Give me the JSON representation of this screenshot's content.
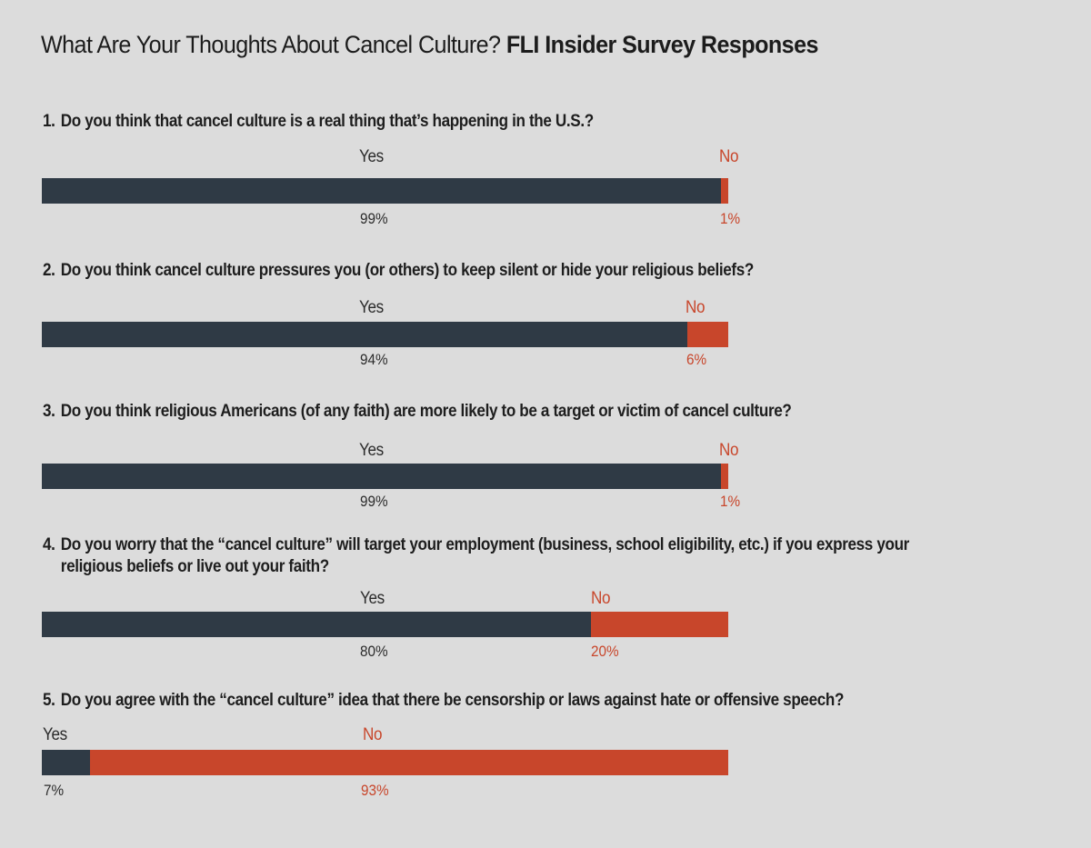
{
  "title": {
    "regular": "What Are Your Thoughts About Cancel Culture?",
    "bold": "FLI Insider Survey Responses"
  },
  "colors": {
    "yes": "#2f3a45",
    "no": "#c8462b",
    "background": "#dcdcdc"
  },
  "chart_data": {
    "type": "bar",
    "orientation": "horizontal-stacked-100",
    "title": "What Are Your Thoughts About Cancel Culture? FLI Insider Survey Responses",
    "categories": [
      "Yes",
      "No"
    ],
    "questions": [
      {
        "number": "1.",
        "text": "Do you think that cancel culture is a real thing that’s happening in the U.S.?",
        "yes_label": "Yes",
        "no_label": "No",
        "yes": 99,
        "no": 1,
        "yes_pct": "99%",
        "no_pct": "1%"
      },
      {
        "number": "2.",
        "text": "Do you think cancel culture pressures you (or others) to keep silent or hide your religious beliefs?",
        "yes_label": "Yes",
        "no_label": "No",
        "yes": 94,
        "no": 6,
        "yes_pct": "94%",
        "no_pct": "6%"
      },
      {
        "number": "3.",
        "text": "Do you think religious Americans (of any faith) are more likely to be a target or victim of cancel culture?",
        "yes_label": "Yes",
        "no_label": "No",
        "yes": 99,
        "no": 1,
        "yes_pct": "99%",
        "no_pct": "1%"
      },
      {
        "number": "4.",
        "text": "Do you worry that the “cancel culture” will target your employment (business, school eligibility, etc.) if you express your",
        "text_cont": "religious beliefs or live out your faith?",
        "yes_label": "Yes",
        "no_label": "No",
        "yes": 80,
        "no": 20,
        "yes_pct": "80%",
        "no_pct": "20%"
      },
      {
        "number": "5.",
        "text": "Do you agree with the “cancel culture” idea that there be censorship or laws against hate or offensive speech?",
        "yes_label": "Yes",
        "no_label": "No",
        "yes": 7,
        "no": 93,
        "yes_pct": "7%",
        "no_pct": "93%"
      }
    ]
  }
}
